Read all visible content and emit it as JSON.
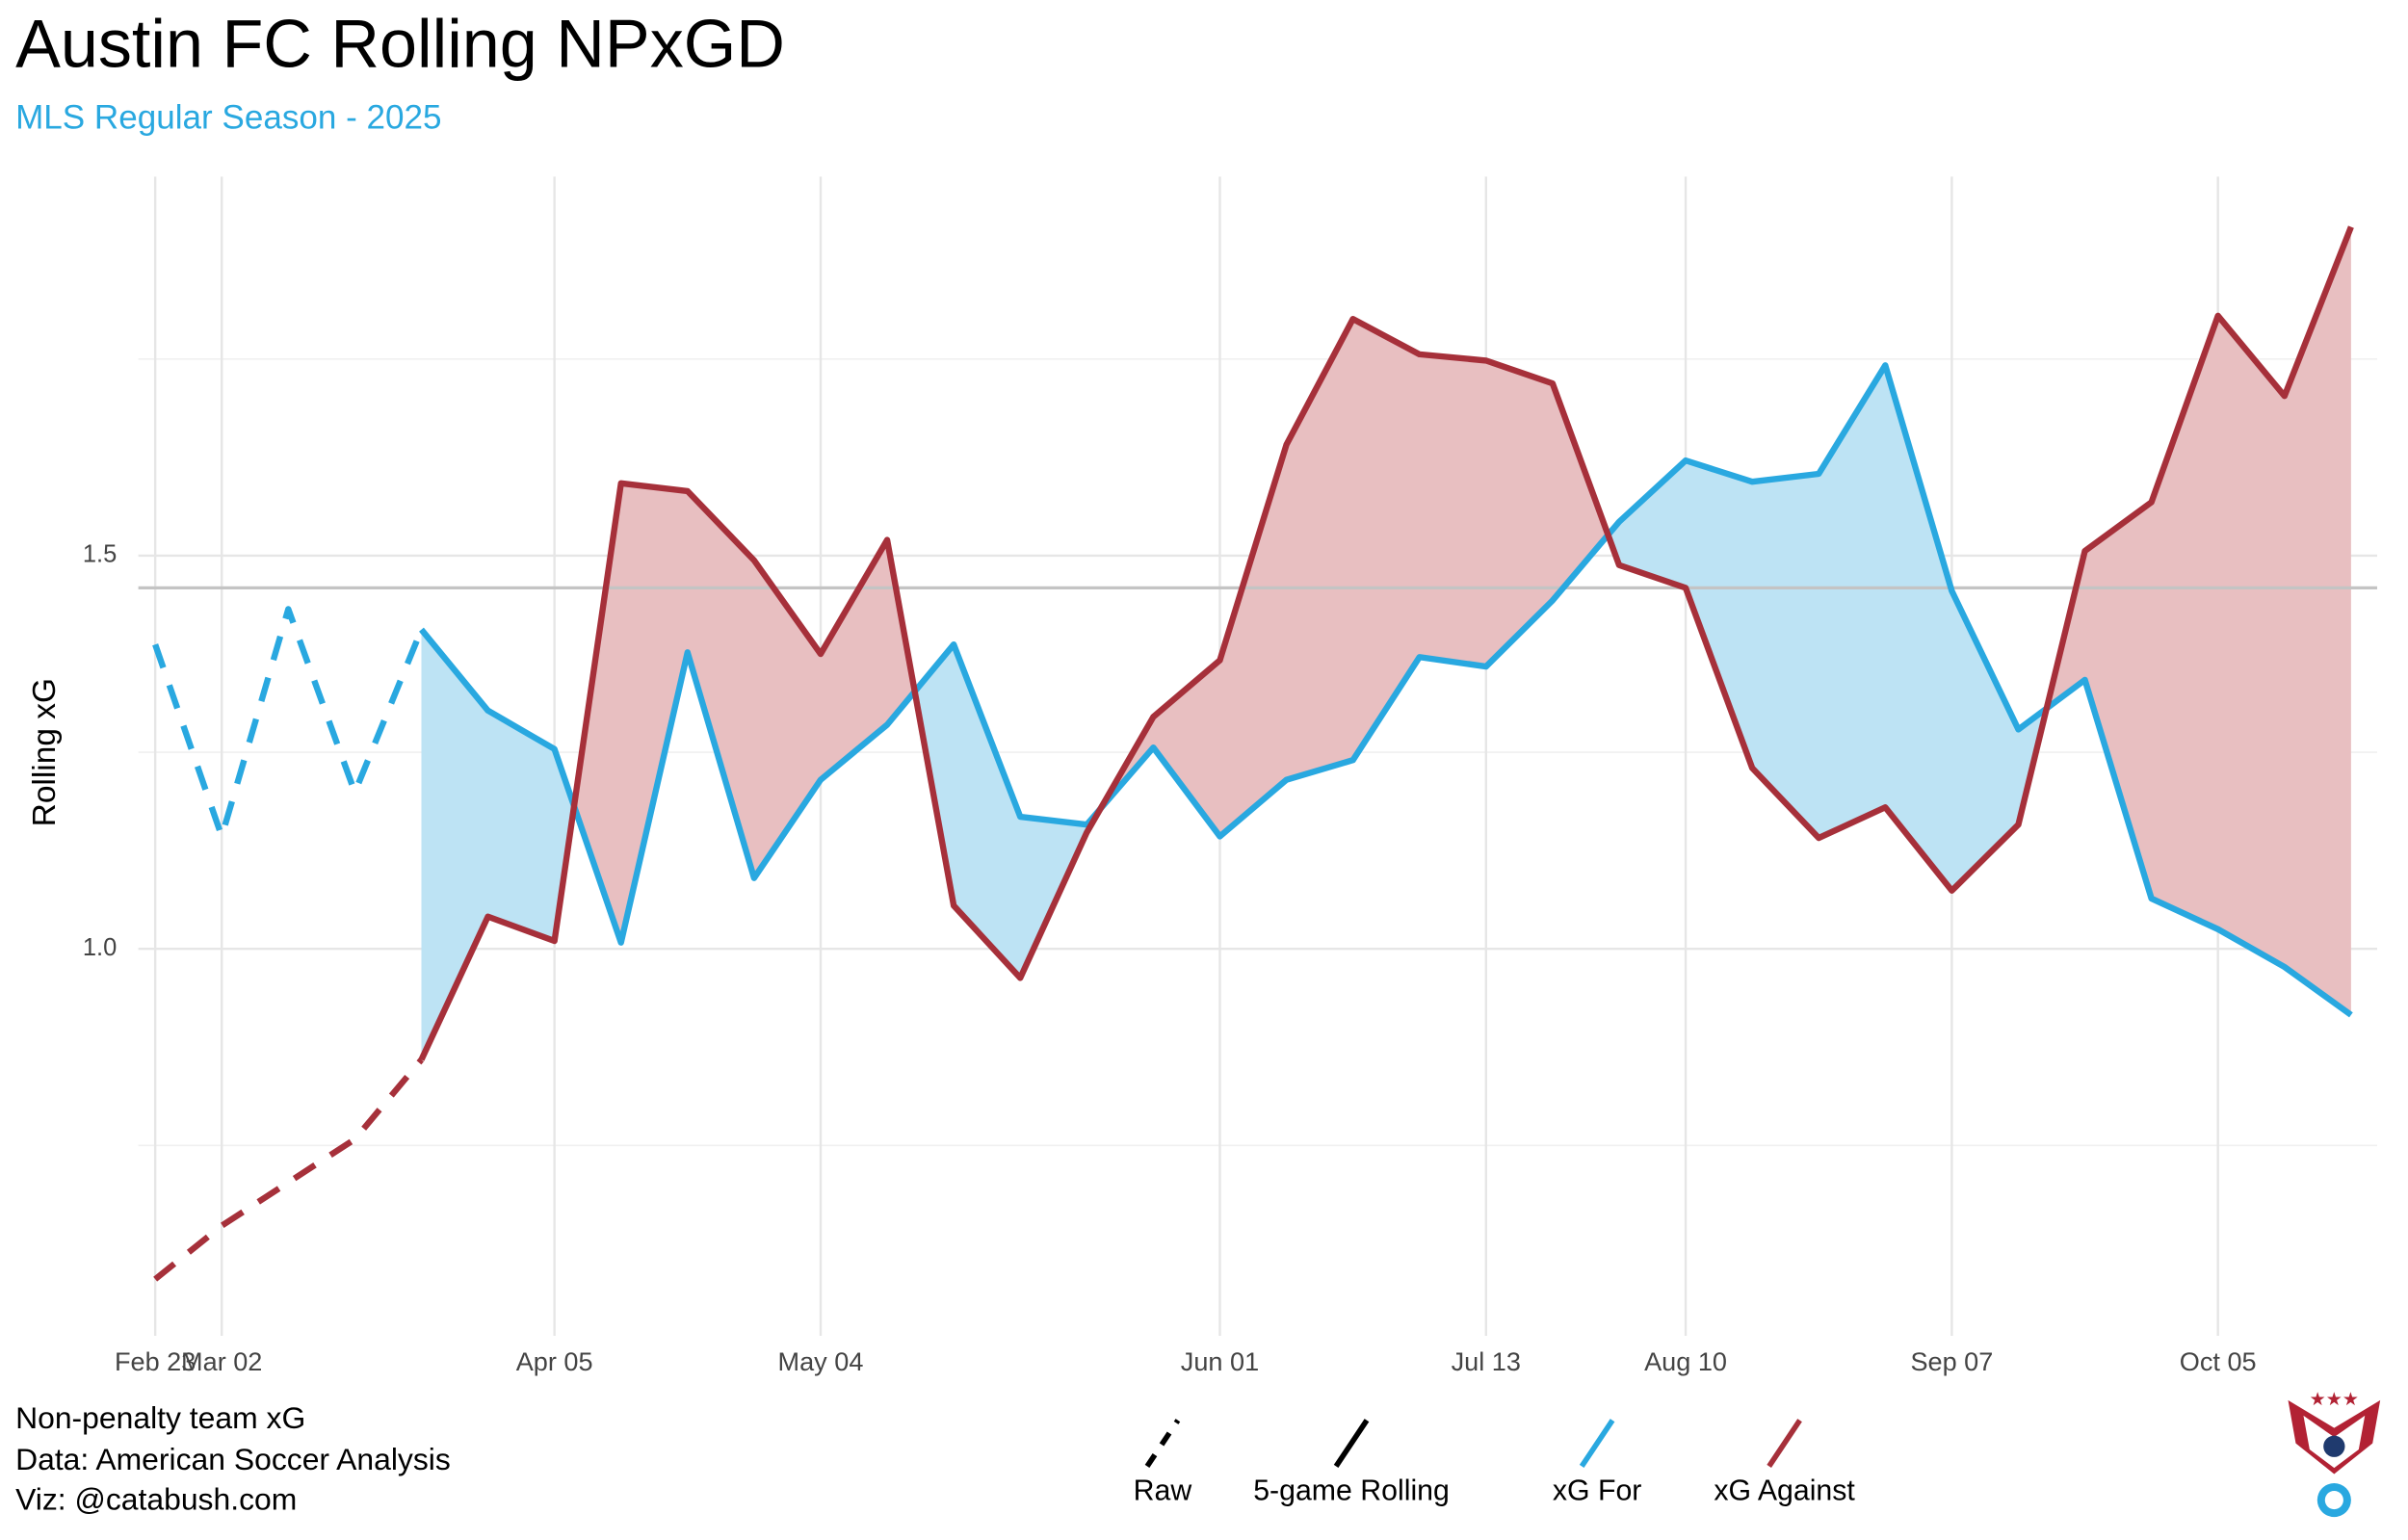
{
  "chart_data": {
    "type": "line",
    "title": "Austin FC Rolling NPxGD",
    "subtitle": "MLS Regular Season - 2025",
    "y_label": "Rolling xG",
    "caption": [
      "Non-penalty team xG",
      "Data: American Soccer Analysis",
      "Viz: @catabush.com"
    ],
    "categories": [
      "Feb 23",
      "Mar 02",
      null,
      null,
      null,
      null,
      "Apr 05",
      null,
      null,
      null,
      "May 04",
      null,
      null,
      null,
      null,
      null,
      "Jun 01",
      null,
      null,
      null,
      "Jul 13",
      null,
      null,
      "Aug 10",
      null,
      null,
      null,
      "Sep 07",
      null,
      null,
      null,
      "Oct 05",
      null,
      null
    ],
    "series": [
      {
        "name": "xG For",
        "color": "#29a8e0",
        "fill": "#bde3f4",
        "values": [
          1.387,
          1.143,
          1.432,
          1.199,
          1.406,
          1.303,
          1.254,
          1.008,
          1.377,
          1.09,
          1.215,
          1.285,
          1.387,
          1.168,
          1.158,
          1.256,
          1.143,
          1.215,
          1.24,
          1.371,
          1.359,
          1.443,
          1.543,
          1.621,
          1.594,
          1.604,
          1.742,
          1.455,
          1.279,
          1.342,
          1.064,
          1.025,
          0.977,
          0.916
        ]
      },
      {
        "name": "xG Against",
        "color": "#a6303a",
        "fill": "#e8bfc1",
        "values": [
          0.58,
          0.648,
          0.703,
          0.758,
          0.859,
          1.041,
          1.01,
          1.592,
          1.582,
          1.494,
          1.375,
          1.52,
          1.055,
          0.963,
          1.148,
          1.295,
          1.367,
          1.641,
          1.801,
          1.756,
          1.748,
          1.719,
          1.488,
          1.459,
          1.23,
          1.141,
          1.18,
          1.074,
          1.158,
          1.506,
          1.568,
          1.805,
          1.703,
          1.918
        ]
      }
    ],
    "linetypes": [
      {
        "name": "Raw",
        "style": "dashed"
      },
      {
        "name": "5-game Rolling",
        "style": "solid"
      }
    ],
    "raw_until_index": 4,
    "reference_line": 1.459,
    "ylim": [
      0.508,
      1.982
    ],
    "yticks": [
      {
        "value": 1,
        "label": "1.0"
      },
      1.5
    ],
    "minor_yticks": [
      0.75,
      1.25,
      1.75
    ],
    "grid": true
  }
}
